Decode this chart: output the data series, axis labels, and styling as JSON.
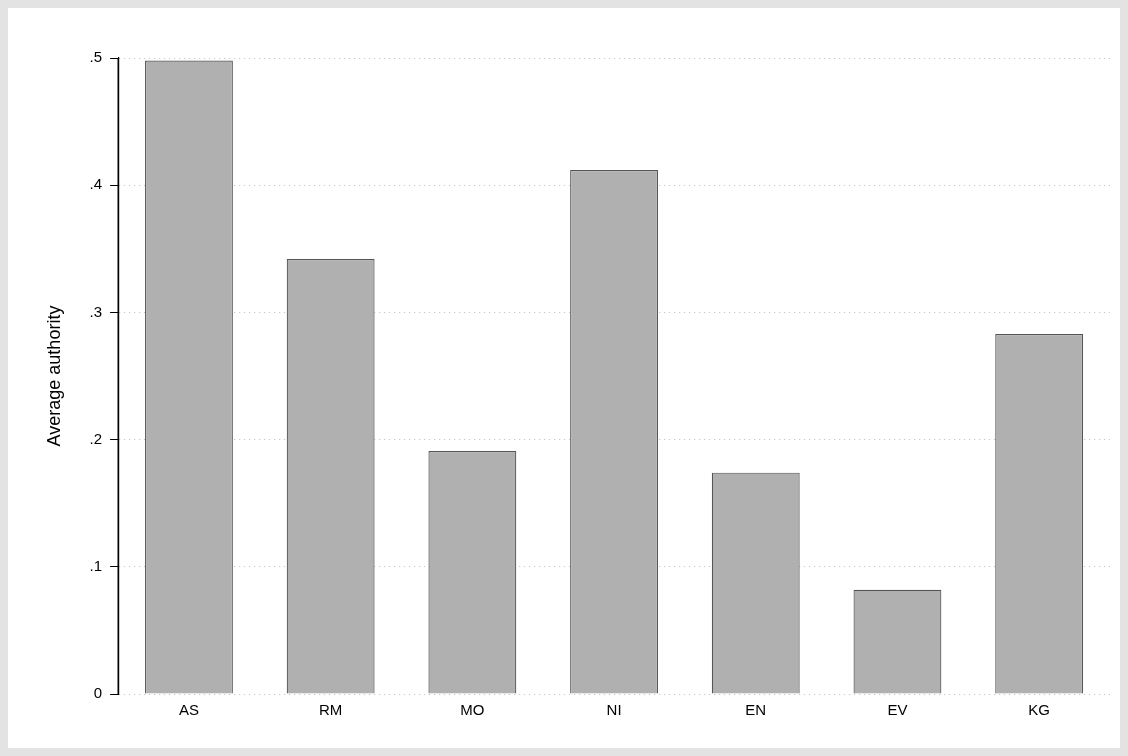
{
  "chart_data": {
    "type": "bar",
    "ylabel": "Average authority",
    "categories": [
      "AS",
      "RM",
      "MO",
      "NI",
      "EN",
      "EV",
      "KG"
    ],
    "values": [
      0.498,
      0.342,
      0.191,
      0.412,
      0.174,
      0.082,
      0.283
    ],
    "color": "#b0b0b0",
    "ylim": [
      0,
      0.5
    ],
    "yticks": [
      0,
      {
        "value": 0.1,
        "label": ".1"
      },
      {
        "value": 0.2,
        "label": ".2"
      },
      {
        "value": 0.3,
        "label": ".3"
      },
      {
        "value": 0.4,
        "label": ".4"
      },
      {
        "value": 0.5,
        "label": ".5"
      }
    ],
    "grid": "y",
    "legend": false
  }
}
